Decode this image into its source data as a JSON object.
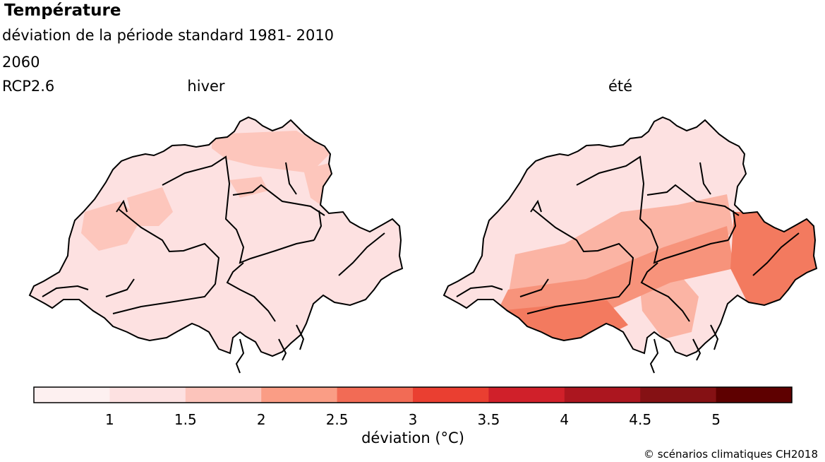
{
  "header": {
    "title": "Température",
    "subtitle": "déviation de la période standard 1981- 2010",
    "period": "2060",
    "scenario": "RCP2.6"
  },
  "panels": [
    {
      "label": "hiver",
      "fill": "#fde1e1",
      "regions": [
        {
          "fill": "#fdc6bc",
          "level": 1
        }
      ]
    },
    {
      "label": "été",
      "fill": "#fde1e1",
      "regions": [
        {
          "fill": "#fbb4a4",
          "level": 2
        },
        {
          "fill": "#f7937b",
          "level": 3
        },
        {
          "fill": "#f37a5f",
          "level": 4
        }
      ]
    }
  ],
  "legend": {
    "title": "déviation  (°C)",
    "ticks": [
      "1",
      "1.5",
      "2",
      "2.5",
      "3",
      "3.5",
      "4",
      "4.5",
      "5"
    ],
    "colors": [
      "#fdf0f0",
      "#fde1e1",
      "#fcc4bb",
      "#fa9d85",
      "#f26b55",
      "#ea3f31",
      "#d0202a",
      "#ac161f",
      "#851114",
      "#5e0000"
    ]
  },
  "credit": "© scénarios climatiques CH2018"
}
